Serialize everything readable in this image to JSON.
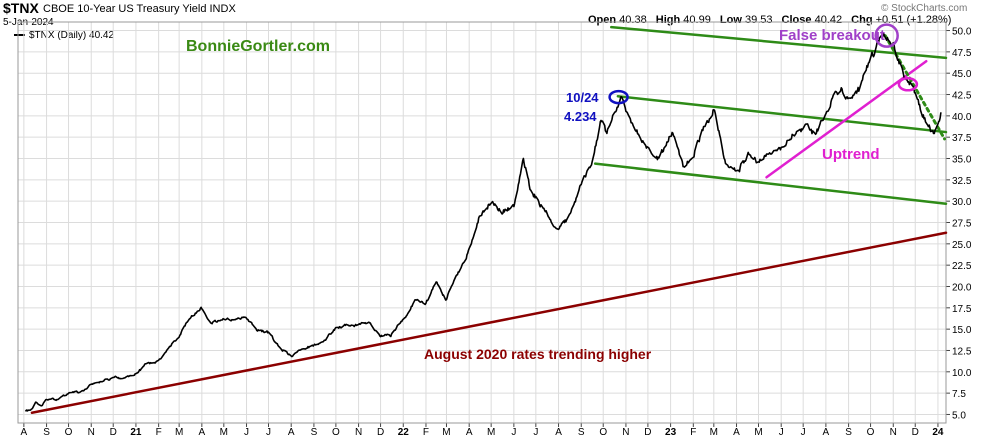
{
  "header": {
    "ticker": "$TNX",
    "description": "CBOE 10-Year US Treasury Yield INDX",
    "date": "5-Jan-2024",
    "brand": "© StockCharts.com",
    "legend_label": "$TNX (Daily) 40.42",
    "open_label": "Open",
    "open": "40.38",
    "high_label": "High",
    "high": "40.99",
    "low_label": "Low",
    "low": "39.53",
    "close_label": "Close",
    "close": "40.42",
    "chg_label": "Chg",
    "chg": "+0.51 (+1.28%)"
  },
  "colors": {
    "price": "#000000",
    "channel": "#2e8b17",
    "long_trend": "#8b0000",
    "uptrend": "#e020d0",
    "breakout": "#a040c8",
    "note_blue": "#1010c0",
    "brand_green": "#3a8a14",
    "grid": "#dcdcdc"
  },
  "chart_data": {
    "type": "line",
    "series": [
      {
        "name": "$TNX",
        "x": [
          "2020-08-03",
          "2020-08-10",
          "2020-08-17",
          "2020-08-24",
          "2020-09-01",
          "2020-09-15",
          "2020-10-01",
          "2020-10-15",
          "2020-11-02",
          "2020-11-16",
          "2020-12-01",
          "2020-12-15",
          "2021-01-04",
          "2021-01-15",
          "2021-02-01",
          "2021-02-15",
          "2021-03-01",
          "2021-03-15",
          "2021-03-31",
          "2021-04-15",
          "2021-05-01",
          "2021-05-15",
          "2021-06-01",
          "2021-06-15",
          "2021-07-01",
          "2021-07-15",
          "2021-08-02",
          "2021-08-16",
          "2021-09-01",
          "2021-09-15",
          "2021-10-01",
          "2021-10-15",
          "2021-11-01",
          "2021-11-15",
          "2021-12-01",
          "2021-12-15",
          "2022-01-03",
          "2022-01-18",
          "2022-02-01",
          "2022-02-15",
          "2022-03-01",
          "2022-03-15",
          "2022-04-01",
          "2022-04-15",
          "2022-05-02",
          "2022-05-16",
          "2022-06-01",
          "2022-06-14",
          "2022-06-24",
          "2022-07-08",
          "2022-07-22",
          "2022-08-01",
          "2022-08-15",
          "2022-09-01",
          "2022-09-15",
          "2022-09-28",
          "2022-10-05",
          "2022-10-24",
          "2022-11-01",
          "2022-11-14",
          "2022-12-01",
          "2022-12-15",
          "2023-01-03",
          "2023-01-18",
          "2023-02-01",
          "2023-02-15",
          "2023-03-02",
          "2023-03-17",
          "2023-04-03",
          "2023-04-17",
          "2023-05-01",
          "2023-05-15",
          "2023-06-01",
          "2023-06-15",
          "2023-07-03",
          "2023-07-17",
          "2023-08-01",
          "2023-08-21",
          "2023-09-01",
          "2023-09-15",
          "2023-10-02",
          "2023-10-19",
          "2023-11-01",
          "2023-11-15",
          "2023-12-01",
          "2023-12-15",
          "2023-12-27",
          "2024-01-05"
        ],
        "y": [
          5.6,
          5.4,
          6.5,
          6.0,
          6.8,
          6.7,
          7.4,
          7.6,
          8.5,
          8.9,
          9.3,
          9.2,
          9.9,
          11.0,
          11.2,
          12.9,
          14.2,
          16.3,
          17.4,
          15.8,
          16.2,
          16.0,
          16.3,
          15.0,
          14.6,
          12.9,
          11.8,
          12.6,
          13.1,
          13.6,
          15.2,
          15.4,
          15.5,
          15.9,
          14.2,
          14.3,
          16.4,
          18.4,
          18.1,
          20.4,
          18.4,
          21.4,
          24.2,
          28.3,
          29.9,
          28.8,
          29.4,
          34.9,
          31.3,
          29.6,
          27.7,
          26.5,
          28.1,
          31.9,
          34.3,
          39.5,
          37.9,
          42.3,
          40.8,
          38.3,
          35.9,
          35.0,
          37.9,
          34.0,
          35.3,
          38.8,
          40.8,
          34.3,
          33.5,
          35.6,
          34.4,
          35.5,
          36.3,
          37.8,
          38.6,
          37.8,
          40.4,
          43.4,
          41.8,
          43.0,
          46.8,
          49.9,
          48.5,
          44.9,
          42.6,
          39.3,
          37.9,
          40.42
        ]
      }
    ],
    "ylim": [
      4.0,
      51.0
    ],
    "y_ticks": [
      "50.0",
      "47.5",
      "45.0",
      "42.5",
      "40.0",
      "37.5",
      "35.0",
      "32.5",
      "30.0",
      "27.5",
      "25.0",
      "22.5",
      "20.0",
      "17.5",
      "15.0",
      "12.5",
      "10.0",
      "7.5",
      "5.0"
    ],
    "x_range": [
      "2020-07-24",
      "2024-01-12"
    ],
    "x_ticks": [
      {
        "label": "A",
        "date": "2020-08-01"
      },
      {
        "label": "S",
        "date": "2020-09-01"
      },
      {
        "label": "O",
        "date": "2020-10-01"
      },
      {
        "label": "N",
        "date": "2020-11-01"
      },
      {
        "label": "D",
        "date": "2020-12-01"
      },
      {
        "label": "21",
        "date": "2021-01-01"
      },
      {
        "label": "F",
        "date": "2021-02-01"
      },
      {
        "label": "M",
        "date": "2021-03-01"
      },
      {
        "label": "A",
        "date": "2021-04-01"
      },
      {
        "label": "M",
        "date": "2021-05-01"
      },
      {
        "label": "J",
        "date": "2021-06-01"
      },
      {
        "label": "J",
        "date": "2021-07-01"
      },
      {
        "label": "A",
        "date": "2021-08-01"
      },
      {
        "label": "S",
        "date": "2021-09-01"
      },
      {
        "label": "O",
        "date": "2021-10-01"
      },
      {
        "label": "N",
        "date": "2021-11-01"
      },
      {
        "label": "D",
        "date": "2021-12-01"
      },
      {
        "label": "22",
        "date": "2022-01-01"
      },
      {
        "label": "F",
        "date": "2022-02-01"
      },
      {
        "label": "M",
        "date": "2022-03-01"
      },
      {
        "label": "A",
        "date": "2022-04-01"
      },
      {
        "label": "M",
        "date": "2022-05-01"
      },
      {
        "label": "J",
        "date": "2022-06-01"
      },
      {
        "label": "J",
        "date": "2022-07-01"
      },
      {
        "label": "A",
        "date": "2022-08-01"
      },
      {
        "label": "S",
        "date": "2022-09-01"
      },
      {
        "label": "O",
        "date": "2022-10-01"
      },
      {
        "label": "N",
        "date": "2022-11-01"
      },
      {
        "label": "D",
        "date": "2022-12-01"
      },
      {
        "label": "23",
        "date": "2023-01-01"
      },
      {
        "label": "F",
        "date": "2023-02-01"
      },
      {
        "label": "M",
        "date": "2023-03-01"
      },
      {
        "label": "A",
        "date": "2023-04-01"
      },
      {
        "label": "M",
        "date": "2023-05-01"
      },
      {
        "label": "J",
        "date": "2023-06-01"
      },
      {
        "label": "J",
        "date": "2023-07-01"
      },
      {
        "label": "A",
        "date": "2023-08-01"
      },
      {
        "label": "S",
        "date": "2023-09-01"
      },
      {
        "label": "O",
        "date": "2023-10-01"
      },
      {
        "label": "N",
        "date": "2023-11-01"
      },
      {
        "label": "D",
        "date": "2023-12-01"
      },
      {
        "label": "24",
        "date": "2024-01-01"
      }
    ],
    "trendlines": [
      {
        "name": "channel-upper",
        "color": "channel",
        "x": [
          "2022-10-12",
          "2024-01-12"
        ],
        "y": [
          50.4,
          46.8
        ]
      },
      {
        "name": "channel-middle",
        "color": "channel",
        "x": [
          "2022-10-21",
          "2024-01-12"
        ],
        "y": [
          42.3,
          38.1
        ]
      },
      {
        "name": "channel-lower",
        "color": "channel",
        "x": [
          "2022-09-20",
          "2024-01-12"
        ],
        "y": [
          34.4,
          29.7
        ]
      },
      {
        "name": "long-trend",
        "color": "long_trend",
        "x": [
          "2020-08-12",
          "2024-01-12"
        ],
        "y": [
          5.2,
          26.3
        ]
      },
      {
        "name": "uptrend",
        "color": "uptrend",
        "x": [
          "2023-05-12",
          "2023-12-16"
        ],
        "y": [
          32.8,
          46.4
        ]
      },
      {
        "name": "breakdown",
        "color": "channel",
        "dashed": true,
        "x": [
          "2023-10-21",
          "2024-01-10"
        ],
        "y": [
          49.4,
          37.3
        ]
      }
    ],
    "markers": [
      {
        "name": "oct24-peak-marker",
        "color": "note_blue",
        "x": "2022-10-22",
        "y": 42.2
      },
      {
        "name": "false-breakout-marker",
        "color": "breakout",
        "x": "2023-10-23",
        "y": 49.4
      },
      {
        "name": "breakdown-marker",
        "color": "uptrend",
        "x": "2023-11-21",
        "y": 43.7
      }
    ],
    "annotations": {
      "brand_note": "BonnieGortler.com",
      "peak_date": "10/24",
      "peak_value": "4.234",
      "false_breakout": "False breakout",
      "uptrend": "Uptrend",
      "long_trend": "August 2020 rates trending higher"
    },
    "grid": true
  }
}
